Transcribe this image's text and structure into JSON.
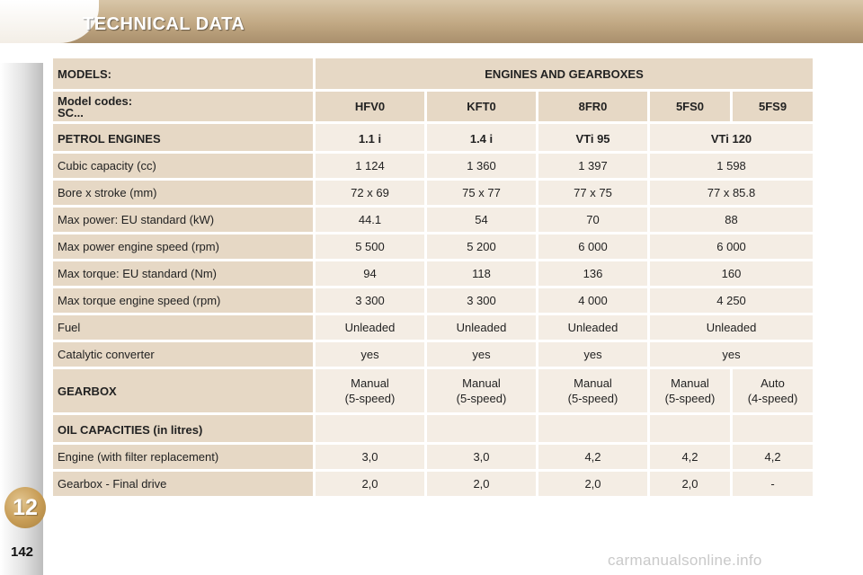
{
  "header": {
    "title": "TECHNICAL DATA"
  },
  "sidebar": {
    "chapter": "12",
    "page_number": "142"
  },
  "watermark": "carmanualsonline.info",
  "table": {
    "models_label": "MODELS:",
    "engines_header": "ENGINES AND GEARBOXES",
    "codes_label_line1": "Model codes:",
    "codes_label_line2": "SC...",
    "codes": [
      "HFV0",
      "KFT0",
      "8FR0",
      "5FS0",
      "5FS9"
    ],
    "petrol": {
      "label": "PETROL ENGINES",
      "engines": [
        "1.1 i",
        "1.4 i",
        "VTi 95",
        "VTi 120"
      ],
      "rows": [
        {
          "label": "Cubic capacity (cc)",
          "values": [
            "1 124",
            "1 360",
            "1 397",
            "1 598"
          ]
        },
        {
          "label": "Bore x stroke (mm)",
          "values": [
            "72 x 69",
            "75 x 77",
            "77 x 75",
            "77 x 85.8"
          ]
        },
        {
          "label": "Max power: EU standard (kW)",
          "values": [
            "44.1",
            "54",
            "70",
            "88"
          ]
        },
        {
          "label": "Max power engine speed (rpm)",
          "values": [
            "5 500",
            "5 200",
            "6 000",
            "6 000"
          ]
        },
        {
          "label": "Max torque: EU standard (Nm)",
          "values": [
            "94",
            "118",
            "136",
            "160"
          ]
        },
        {
          "label": "Max torque engine speed (rpm)",
          "values": [
            "3 300",
            "3 300",
            "4 000",
            "4 250"
          ]
        },
        {
          "label": "Fuel",
          "values": [
            "Unleaded",
            "Unleaded",
            "Unleaded",
            "Unleaded"
          ]
        },
        {
          "label": "Catalytic converter",
          "values": [
            "yes",
            "yes",
            "yes",
            "yes"
          ]
        }
      ]
    },
    "gearbox": {
      "label": "GEARBOX",
      "values": [
        {
          "line1": "Manual",
          "line2": "(5-speed)"
        },
        {
          "line1": "Manual",
          "line2": "(5-speed)"
        },
        {
          "line1": "Manual",
          "line2": "(5-speed)"
        },
        {
          "line1": "Manual",
          "line2": "(5-speed)"
        },
        {
          "line1": "Auto",
          "line2": "(4-speed)"
        }
      ]
    },
    "oil": {
      "label": "OIL CAPACITIES (in litres)",
      "rows": [
        {
          "label": "Engine (with filter replacement)",
          "values": [
            "3,0",
            "3,0",
            "4,2",
            "4,2",
            "4,2"
          ]
        },
        {
          "label": "Gearbox - Final drive",
          "values": [
            "2,0",
            "2,0",
            "2,0",
            "2,0",
            "-"
          ]
        }
      ]
    }
  }
}
